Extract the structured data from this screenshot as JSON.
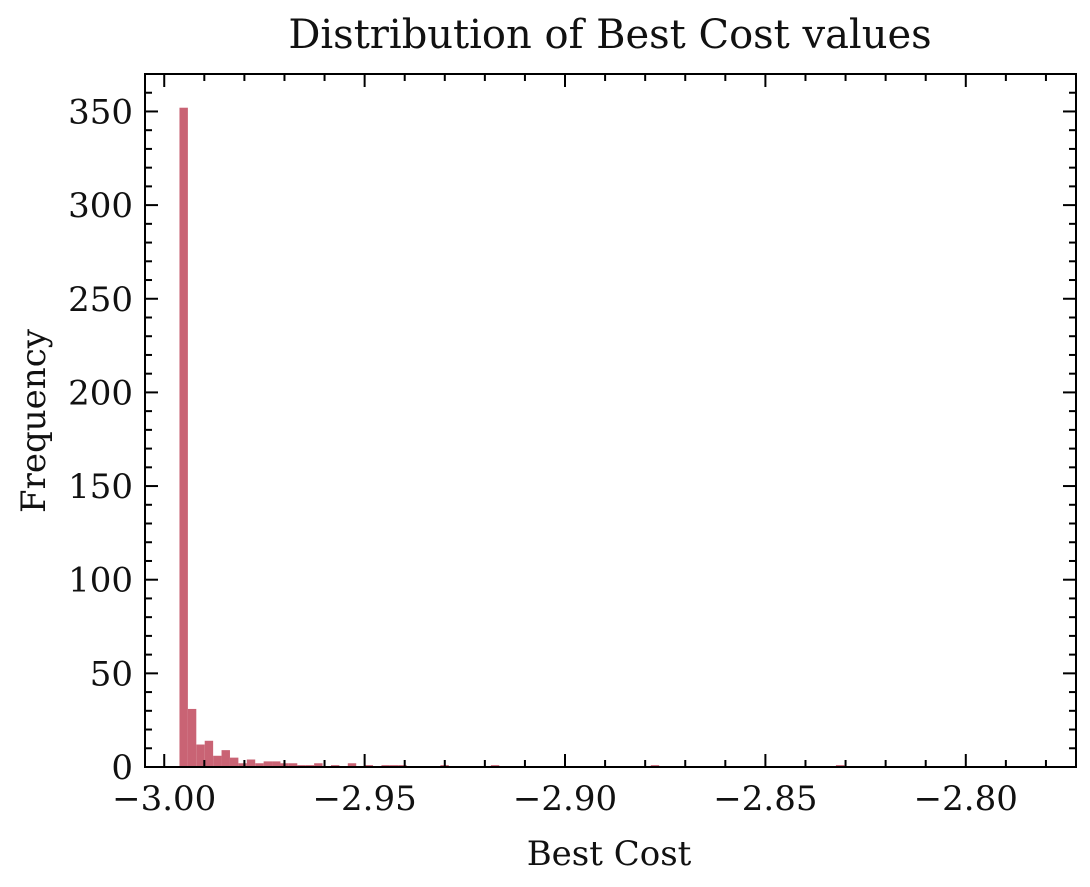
{
  "chart_data": {
    "type": "bar",
    "title": "Distribution of Best Cost values",
    "xlabel": "Best Cost",
    "ylabel": "Frequency",
    "xlim": [
      -3.0048,
      -2.7725
    ],
    "ylim": [
      0,
      370
    ],
    "x_ticks": [
      -3.0,
      -2.95,
      -2.9,
      -2.85,
      -2.8
    ],
    "x_tick_labels": [
      "−3.00",
      "−2.95",
      "−2.90",
      "−2.85",
      "−2.80"
    ],
    "y_ticks": [
      0,
      50,
      100,
      150,
      200,
      250,
      300,
      350
    ],
    "y_tick_labels": [
      "0",
      "50",
      "100",
      "150",
      "200",
      "250",
      "300",
      "350"
    ],
    "bin_start": -2.9962,
    "bin_width": 0.0021,
    "values": [
      352,
      31,
      12,
      14,
      6,
      9,
      5,
      2,
      4,
      2,
      3,
      3,
      2,
      2,
      1,
      1,
      2,
      0,
      1,
      0,
      2,
      0,
      1,
      0,
      1,
      1,
      1,
      0,
      0,
      0,
      0,
      1,
      0,
      0,
      0,
      0,
      0,
      1,
      0,
      0,
      0,
      0,
      0,
      0,
      0,
      0,
      0,
      0,
      0,
      0,
      0,
      0,
      0,
      0,
      0,
      0,
      1,
      0,
      0,
      0,
      0,
      0,
      0,
      0,
      0,
      0,
      0,
      0,
      0,
      0,
      0,
      0,
      0,
      0,
      0,
      0,
      0,
      0,
      1
    ],
    "bar_color": "#c96374",
    "grid": false,
    "legend": "none"
  }
}
